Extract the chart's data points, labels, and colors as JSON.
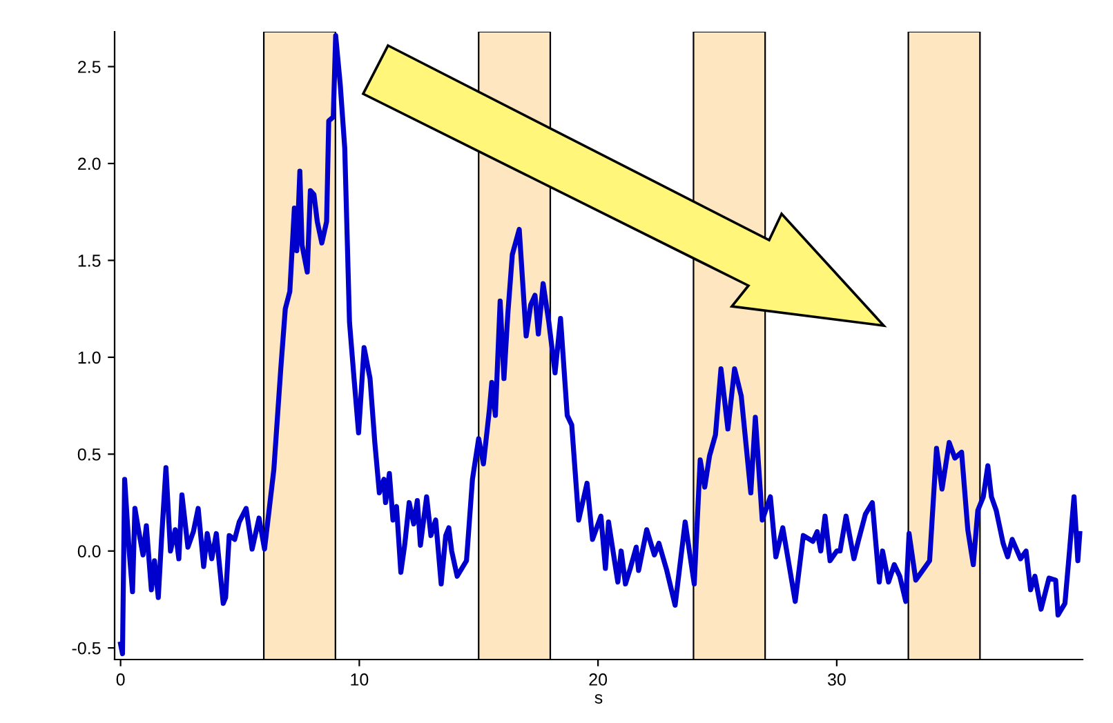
{
  "chart_data": {
    "type": "line",
    "xlabel": "s",
    "xlim": [
      -0.25,
      40.3
    ],
    "ylim": [
      -0.56,
      2.68
    ],
    "xticks": [
      0,
      10,
      20,
      30
    ],
    "yticks": [
      -0.5,
      {
        "value": 0,
        "label": "0.0"
      },
      0.5,
      {
        "value": 1,
        "label": "1.0"
      },
      1.5,
      {
        "value": 2,
        "label": "2.0"
      },
      2.5
    ],
    "grid": false,
    "legend": false,
    "marker": "none",
    "line_style": "solid",
    "bands": [
      {
        "axis": "x",
        "from": 6,
        "to": 9,
        "color": "#fde6c0"
      },
      {
        "axis": "x",
        "from": 15,
        "to": 18,
        "color": "#fde6c0"
      },
      {
        "axis": "x",
        "from": 24,
        "to": 27,
        "color": "#fde6c0"
      },
      {
        "axis": "x",
        "from": 33,
        "to": 36,
        "color": "#fde6c0"
      }
    ],
    "series": [
      {
        "color": "#0000cc",
        "x": [
          0,
          0.08,
          0.17,
          0.36,
          0.5,
          0.6,
          0.75,
          0.94,
          1.08,
          1.29,
          1.42,
          1.58,
          1.71,
          1.9,
          2.09,
          2.29,
          2.44,
          2.57,
          2.82,
          3.05,
          3.25,
          3.48,
          3.63,
          3.82,
          4.01,
          4.3,
          4.4,
          4.55,
          4.78,
          4.97,
          5.26,
          5.51,
          5.8,
          6.03,
          6.42,
          6.71,
          6.9,
          7.09,
          7.28,
          7.38,
          7.51,
          7.6,
          7.82,
          7.95,
          8.1,
          8.24,
          8.43,
          8.63,
          8.72,
          8.91,
          9.01,
          9.2,
          9.39,
          9.59,
          9.78,
          9.97,
          10.2,
          10.45,
          10.65,
          10.84,
          11.03,
          11.1,
          11.26,
          11.41,
          11.56,
          11.74,
          11.9,
          12.09,
          12.28,
          12.43,
          12.56,
          12.82,
          13.0,
          13.2,
          13.43,
          13.62,
          13.75,
          13.87,
          14.1,
          14.49,
          14.74,
          15.0,
          15.2,
          15.45,
          15.55,
          15.7,
          15.9,
          16.06,
          16.22,
          16.41,
          16.7,
          16.99,
          17.18,
          17.36,
          17.5,
          17.7,
          17.94,
          18.2,
          18.43,
          18.71,
          18.9,
          19.19,
          19.54,
          19.77,
          20.12,
          20.31,
          20.44,
          20.83,
          20.97,
          21.15,
          21.35,
          21.6,
          21.7,
          22.04,
          22.36,
          22.55,
          22.88,
          23.23,
          23.65,
          23.85,
          24.03,
          24.28,
          24.47,
          24.67,
          24.92,
          25.15,
          25.44,
          25.72,
          26.0,
          26.4,
          26.59,
          26.88,
          27.22,
          27.45,
          27.74,
          28.26,
          28.6,
          29.0,
          29.18,
          29.33,
          29.51,
          29.72,
          30.0,
          30.14,
          30.39,
          30.72,
          30.9,
          31.2,
          31.49,
          31.78,
          31.92,
          32.17,
          32.41,
          32.64,
          32.89,
          33.03,
          33.31,
          33.6,
          33.89,
          34.18,
          34.41,
          34.71,
          34.95,
          35.23,
          35.49,
          35.72,
          35.91,
          36.14,
          36.33,
          36.48,
          36.68,
          36.97,
          37.16,
          37.35,
          37.7,
          37.93,
          38.12,
          38.3,
          38.56,
          38.89,
          39.17,
          39.27,
          39.56,
          39.75,
          39.94,
          40.1,
          40.18
        ],
        "values": [
          -0.48,
          -0.53,
          0.37,
          0,
          -0.21,
          0.22,
          0.11,
          -0.02,
          0.13,
          -0.2,
          -0.05,
          -0.24,
          0.05,
          0.43,
          0,
          0.11,
          -0.04,
          0.29,
          0.02,
          0.1,
          0.22,
          -0.08,
          0.09,
          -0.04,
          0.09,
          -0.27,
          -0.24,
          0.08,
          0.06,
          0.15,
          0.22,
          0.01,
          0.17,
          0.01,
          0.42,
          0.94,
          1.25,
          1.34,
          1.77,
          1.55,
          1.96,
          1.58,
          1.44,
          1.86,
          1.84,
          1.7,
          1.59,
          1.7,
          2.22,
          2.24,
          2.66,
          2.41,
          2.08,
          1.18,
          0.89,
          0.61,
          1.05,
          0.89,
          0.56,
          0.3,
          0.37,
          0.25,
          0.4,
          0.16,
          0.23,
          -0.11,
          0.03,
          0.25,
          0.14,
          0.26,
          0.03,
          0.28,
          0.08,
          0.16,
          -0.17,
          0.08,
          0.12,
          0,
          -0.13,
          -0.05,
          0.37,
          0.58,
          0.45,
          0.73,
          0.87,
          0.7,
          1.29,
          0.89,
          1.22,
          1.53,
          1.66,
          1.11,
          1.27,
          1.32,
          1.12,
          1.38,
          1.18,
          0.92,
          1.2,
          0.7,
          0.65,
          0.16,
          0.35,
          0.06,
          0.18,
          -0.09,
          0.15,
          -0.16,
          0,
          -0.17,
          -0.09,
          0.02,
          -0.1,
          0.11,
          -0.02,
          0.04,
          -0.1,
          -0.28,
          0.15,
          -0.02,
          -0.17,
          0.47,
          0.33,
          0.49,
          0.6,
          0.94,
          0.63,
          0.94,
          0.8,
          0.3,
          0.69,
          0.16,
          0.28,
          -0.03,
          0.12,
          -0.26,
          0.08,
          0.05,
          0.1,
          0,
          0.18,
          -0.05,
          0,
          0,
          0.18,
          -0.04,
          0.05,
          0.19,
          0.25,
          -0.16,
          0,
          -0.16,
          -0.07,
          -0.13,
          -0.26,
          0.09,
          -0.15,
          -0.1,
          -0.05,
          0.53,
          0.32,
          0.56,
          0.48,
          0.51,
          0.11,
          -0.07,
          0.21,
          0.28,
          0.44,
          0.28,
          0.21,
          0.04,
          -0.03,
          0.06,
          -0.04,
          0,
          -0.2,
          -0.13,
          -0.3,
          -0.14,
          -0.15,
          -0.33,
          -0.27,
          0,
          0.28,
          -0.05,
          0.09
        ]
      }
    ]
  }
}
